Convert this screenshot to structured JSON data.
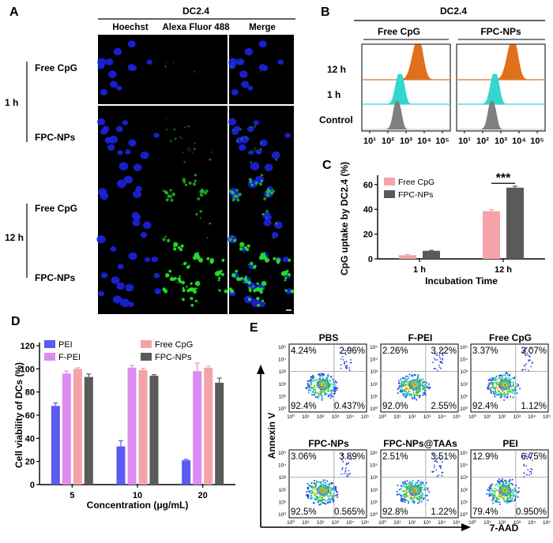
{
  "panel_labels": {
    "a": "A",
    "b": "B",
    "c": "C",
    "d": "D",
    "e": "E"
  },
  "panel_a": {
    "title": "DC2.4",
    "columns": [
      "Hoechst",
      "Alexa Fluor 488",
      "Merge"
    ],
    "time_labels": [
      "1 h",
      "12 h"
    ],
    "row_labels": [
      "Free CpG",
      "FPC-NPs",
      "Free CpG",
      "FPC-NPs"
    ]
  },
  "panel_b": {
    "title": "DC2.4",
    "groups": [
      "Free CpG",
      "FPC-NPs"
    ],
    "row_labels": [
      "12 h",
      "1 h",
      "Control"
    ],
    "x_ticks": [
      "10¹",
      "10²",
      "10³",
      "10⁴",
      "10⁵"
    ],
    "colors": {
      "h12": "#e0701c",
      "h1": "#35d6d0",
      "control": "#7f7f7f"
    }
  },
  "chart_data": [
    {
      "id": "C",
      "type": "bar",
      "categories": [
        "1 h",
        "12 h"
      ],
      "series": [
        {
          "name": "Free CpG",
          "values": [
            3,
            38.5
          ],
          "errors": [
            0.6,
            1.4
          ],
          "color": "#f4a3a8"
        },
        {
          "name": "FPC-NPs",
          "values": [
            6.5,
            57.5
          ],
          "errors": [
            0.4,
            1.2
          ],
          "color": "#5a5a5a"
        }
      ],
      "ylabel": "CpG uptake by DC2.4 (%)",
      "xlabel": "Incubation Time",
      "ylim": [
        0,
        65
      ],
      "yticks": [
        0,
        20,
        40,
        60
      ],
      "annotation": "***"
    },
    {
      "id": "D",
      "type": "bar",
      "categories": [
        "5",
        "10",
        "20"
      ],
      "series": [
        {
          "name": "PEI",
          "values": [
            68,
            33,
            21
          ],
          "errors": [
            2.5,
            5,
            0.8
          ],
          "color": "#5b5bf0"
        },
        {
          "name": "F-PEI",
          "values": [
            96,
            101,
            98
          ],
          "errors": [
            2,
            2,
            7
          ],
          "color": "#dc8cf0"
        },
        {
          "name": "Free CpG",
          "values": [
            100,
            99,
            101
          ],
          "errors": [
            1,
            1.5,
            1.5
          ],
          "color": "#f4a3a8"
        },
        {
          "name": "FPC-NPs",
          "values": [
            93,
            94,
            88
          ],
          "errors": [
            2.5,
            1,
            4
          ],
          "color": "#5a5a5a"
        }
      ],
      "ylabel": "Cell viability of DCs (%)",
      "xlabel": "Concentration (μg/mL)",
      "ylim": [
        0,
        120
      ],
      "yticks": [
        0,
        20,
        40,
        60,
        80,
        100,
        120
      ]
    }
  ],
  "panel_e": {
    "ylabel": "Annexin V",
    "xlabel": "7-AAD",
    "axis_ticks": [
      "10⁰",
      "10¹",
      "10²",
      "10³",
      "10⁴",
      "10⁵"
    ],
    "plots": [
      {
        "name": "PBS",
        "ul": "4.24%",
        "ur": "2.96%",
        "ll": "92.4%",
        "lr": "0.437%"
      },
      {
        "name": "F-PEI",
        "ul": "2.26%",
        "ur": "3.22%",
        "ll": "92.0%",
        "lr": "2.55%"
      },
      {
        "name": "Free CpG",
        "ul": "3.37%",
        "ur": "3.07%",
        "ll": "92.4%",
        "lr": "1.12%"
      },
      {
        "name": "FPC-NPs",
        "ul": "3.06%",
        "ur": "3.89%",
        "ll": "92.5%",
        "lr": "0.565%"
      },
      {
        "name": "FPC-NPs@TAAs",
        "ul": "2.51%",
        "ur": "3.51%",
        "ll": "92.8%",
        "lr": "1.22%"
      },
      {
        "name": "PEI",
        "ul": "12.9%",
        "ur": "6.75%",
        "ll": "79.4%",
        "lr": "0.950%"
      }
    ]
  }
}
